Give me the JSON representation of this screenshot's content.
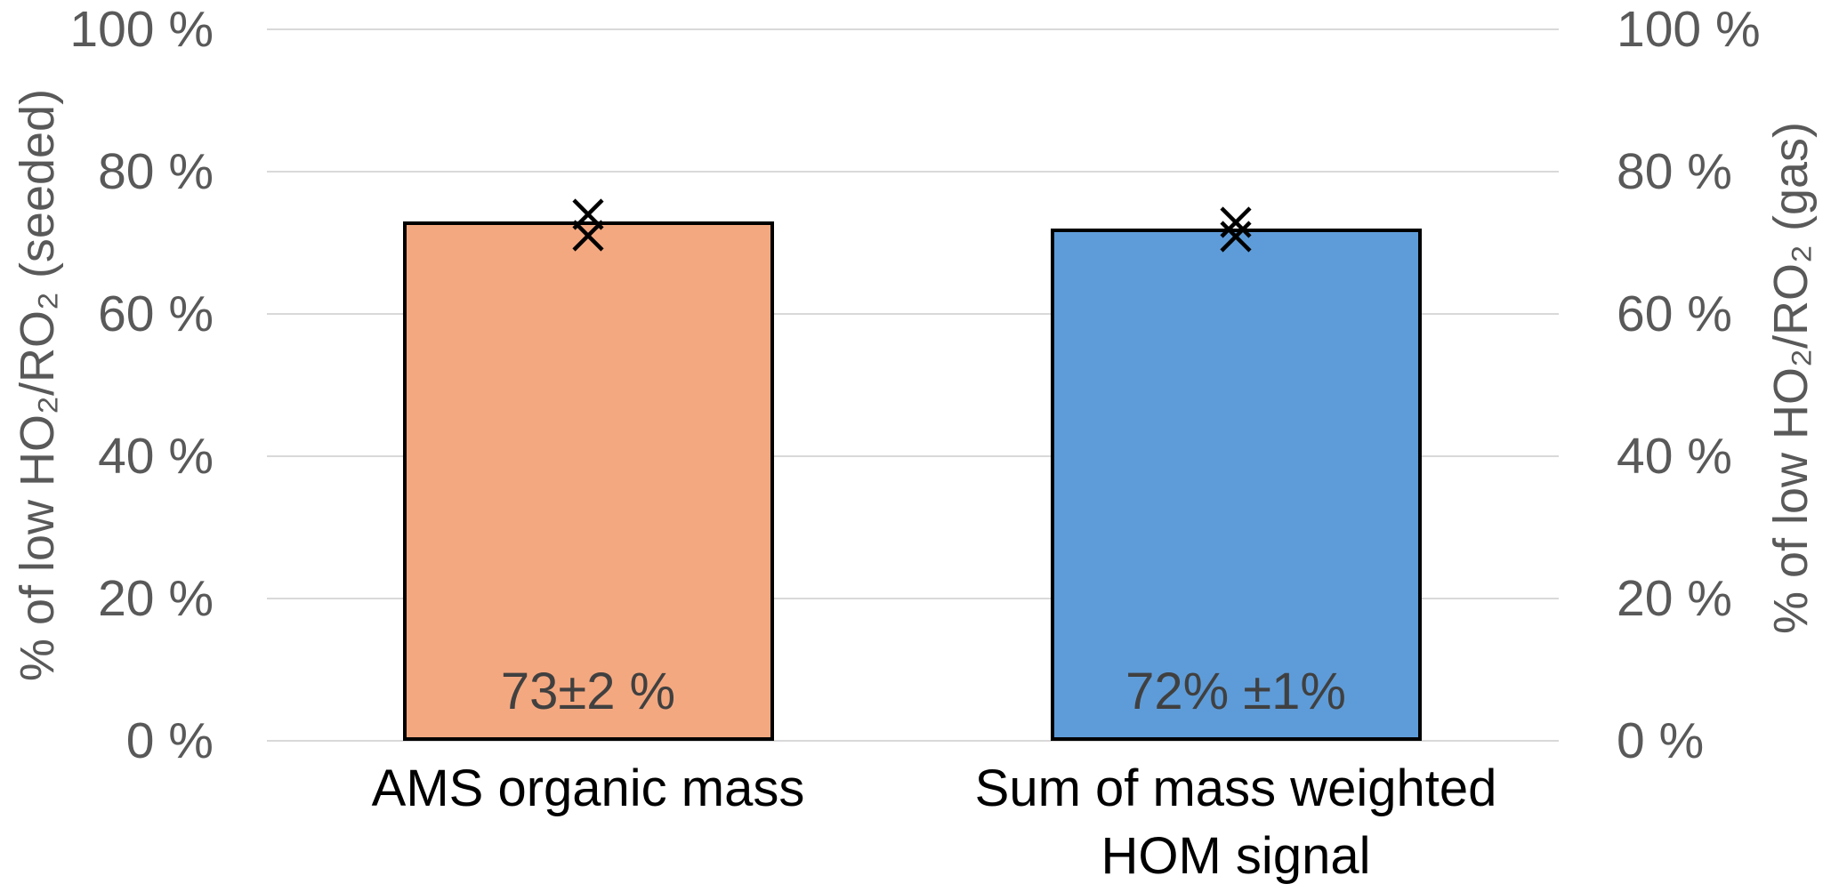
{
  "chart_data": {
    "type": "bar",
    "title": "",
    "categories": [
      "AMS organic mass",
      "Sum of mass weighted HOM signal"
    ],
    "series": [
      {
        "name": "AMS organic mass",
        "value": 73,
        "bar_label": "73±2 %",
        "color": "#F4A880",
        "marker_values": [
          74,
          71
        ],
        "category_lines": [
          "AMS organic mass"
        ]
      },
      {
        "name": "Sum of mass weighted HOM signal",
        "value": 72,
        "bar_label": "72% ±1%",
        "color": "#5E9CD9",
        "marker_values": [
          72.9,
          70.9
        ],
        "category_lines": [
          "Sum of mass weighted",
          "HOM signal"
        ]
      }
    ],
    "marker_symbol": "x",
    "grid": true,
    "ylim": [
      0,
      100
    ],
    "left_axis": {
      "label": "% of low HO₂/RO₂ (seeded)",
      "tick_values": [
        0,
        20,
        40,
        60,
        80,
        100
      ],
      "tick_labels": [
        "0 %",
        "20 %",
        "40 %",
        "60 %",
        "80 %",
        "100 %"
      ]
    },
    "right_axis": {
      "label": "% of low HO₂/RO₂ (gas)",
      "tick_values": [
        0,
        20,
        40,
        60,
        80,
        100
      ],
      "tick_labels": [
        "0 %",
        "20 %",
        "40 %",
        "60 %",
        "80 %",
        "100 %"
      ]
    }
  },
  "colors": {
    "background": "#FFFFFF",
    "grid": "#D9D9D9",
    "tick_text": "#595959",
    "axis_title_text": "#595959",
    "bar_value_text": "#404040",
    "category_text": "#000000",
    "bar_border": "#000000",
    "marker": "#000000"
  }
}
